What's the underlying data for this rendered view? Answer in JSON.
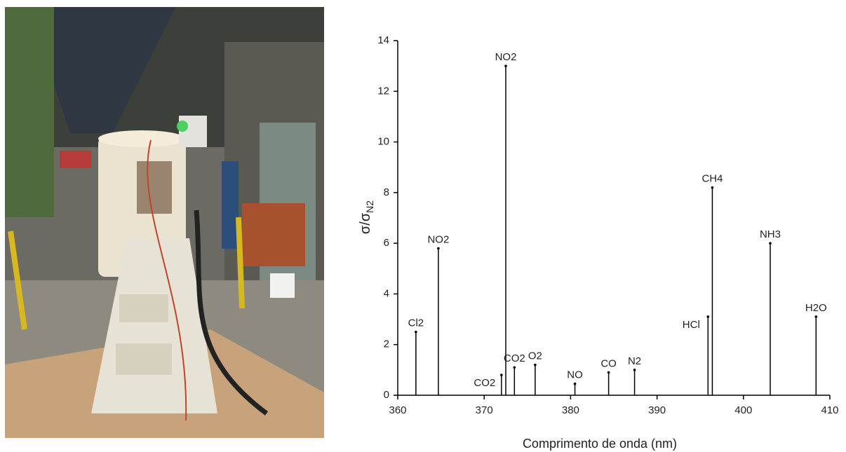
{
  "chart_data": {
    "type": "stem",
    "ylabel": {
      "main": "σ/σ",
      "sub": "N2"
    },
    "xlabel": "Comprimento de onda (nm)",
    "categories": [
      "Cl2",
      "NO2",
      "CO2",
      "NO2",
      "CO2",
      "O2",
      "NO",
      "CO",
      "N2",
      "HCl",
      "CH4",
      "NH3",
      "H2O"
    ],
    "x": [
      362.1,
      364.7,
      372.0,
      372.5,
      373.5,
      375.9,
      380.5,
      384.4,
      387.4,
      395.9,
      396.4,
      403.1,
      408.4
    ],
    "values": [
      2.5,
      5.8,
      0.8,
      13.0,
      1.1,
      1.2,
      0.45,
      0.9,
      1.0,
      3.1,
      8.2,
      6.0,
      3.1
    ],
    "color": "#000000",
    "xlim": [
      360,
      410
    ],
    "xticks": [
      360,
      370,
      380,
      390,
      400,
      410
    ],
    "ylim": [
      0,
      14
    ],
    "yticks": [
      0,
      2,
      4,
      6,
      8,
      10,
      12,
      14
    ]
  }
}
